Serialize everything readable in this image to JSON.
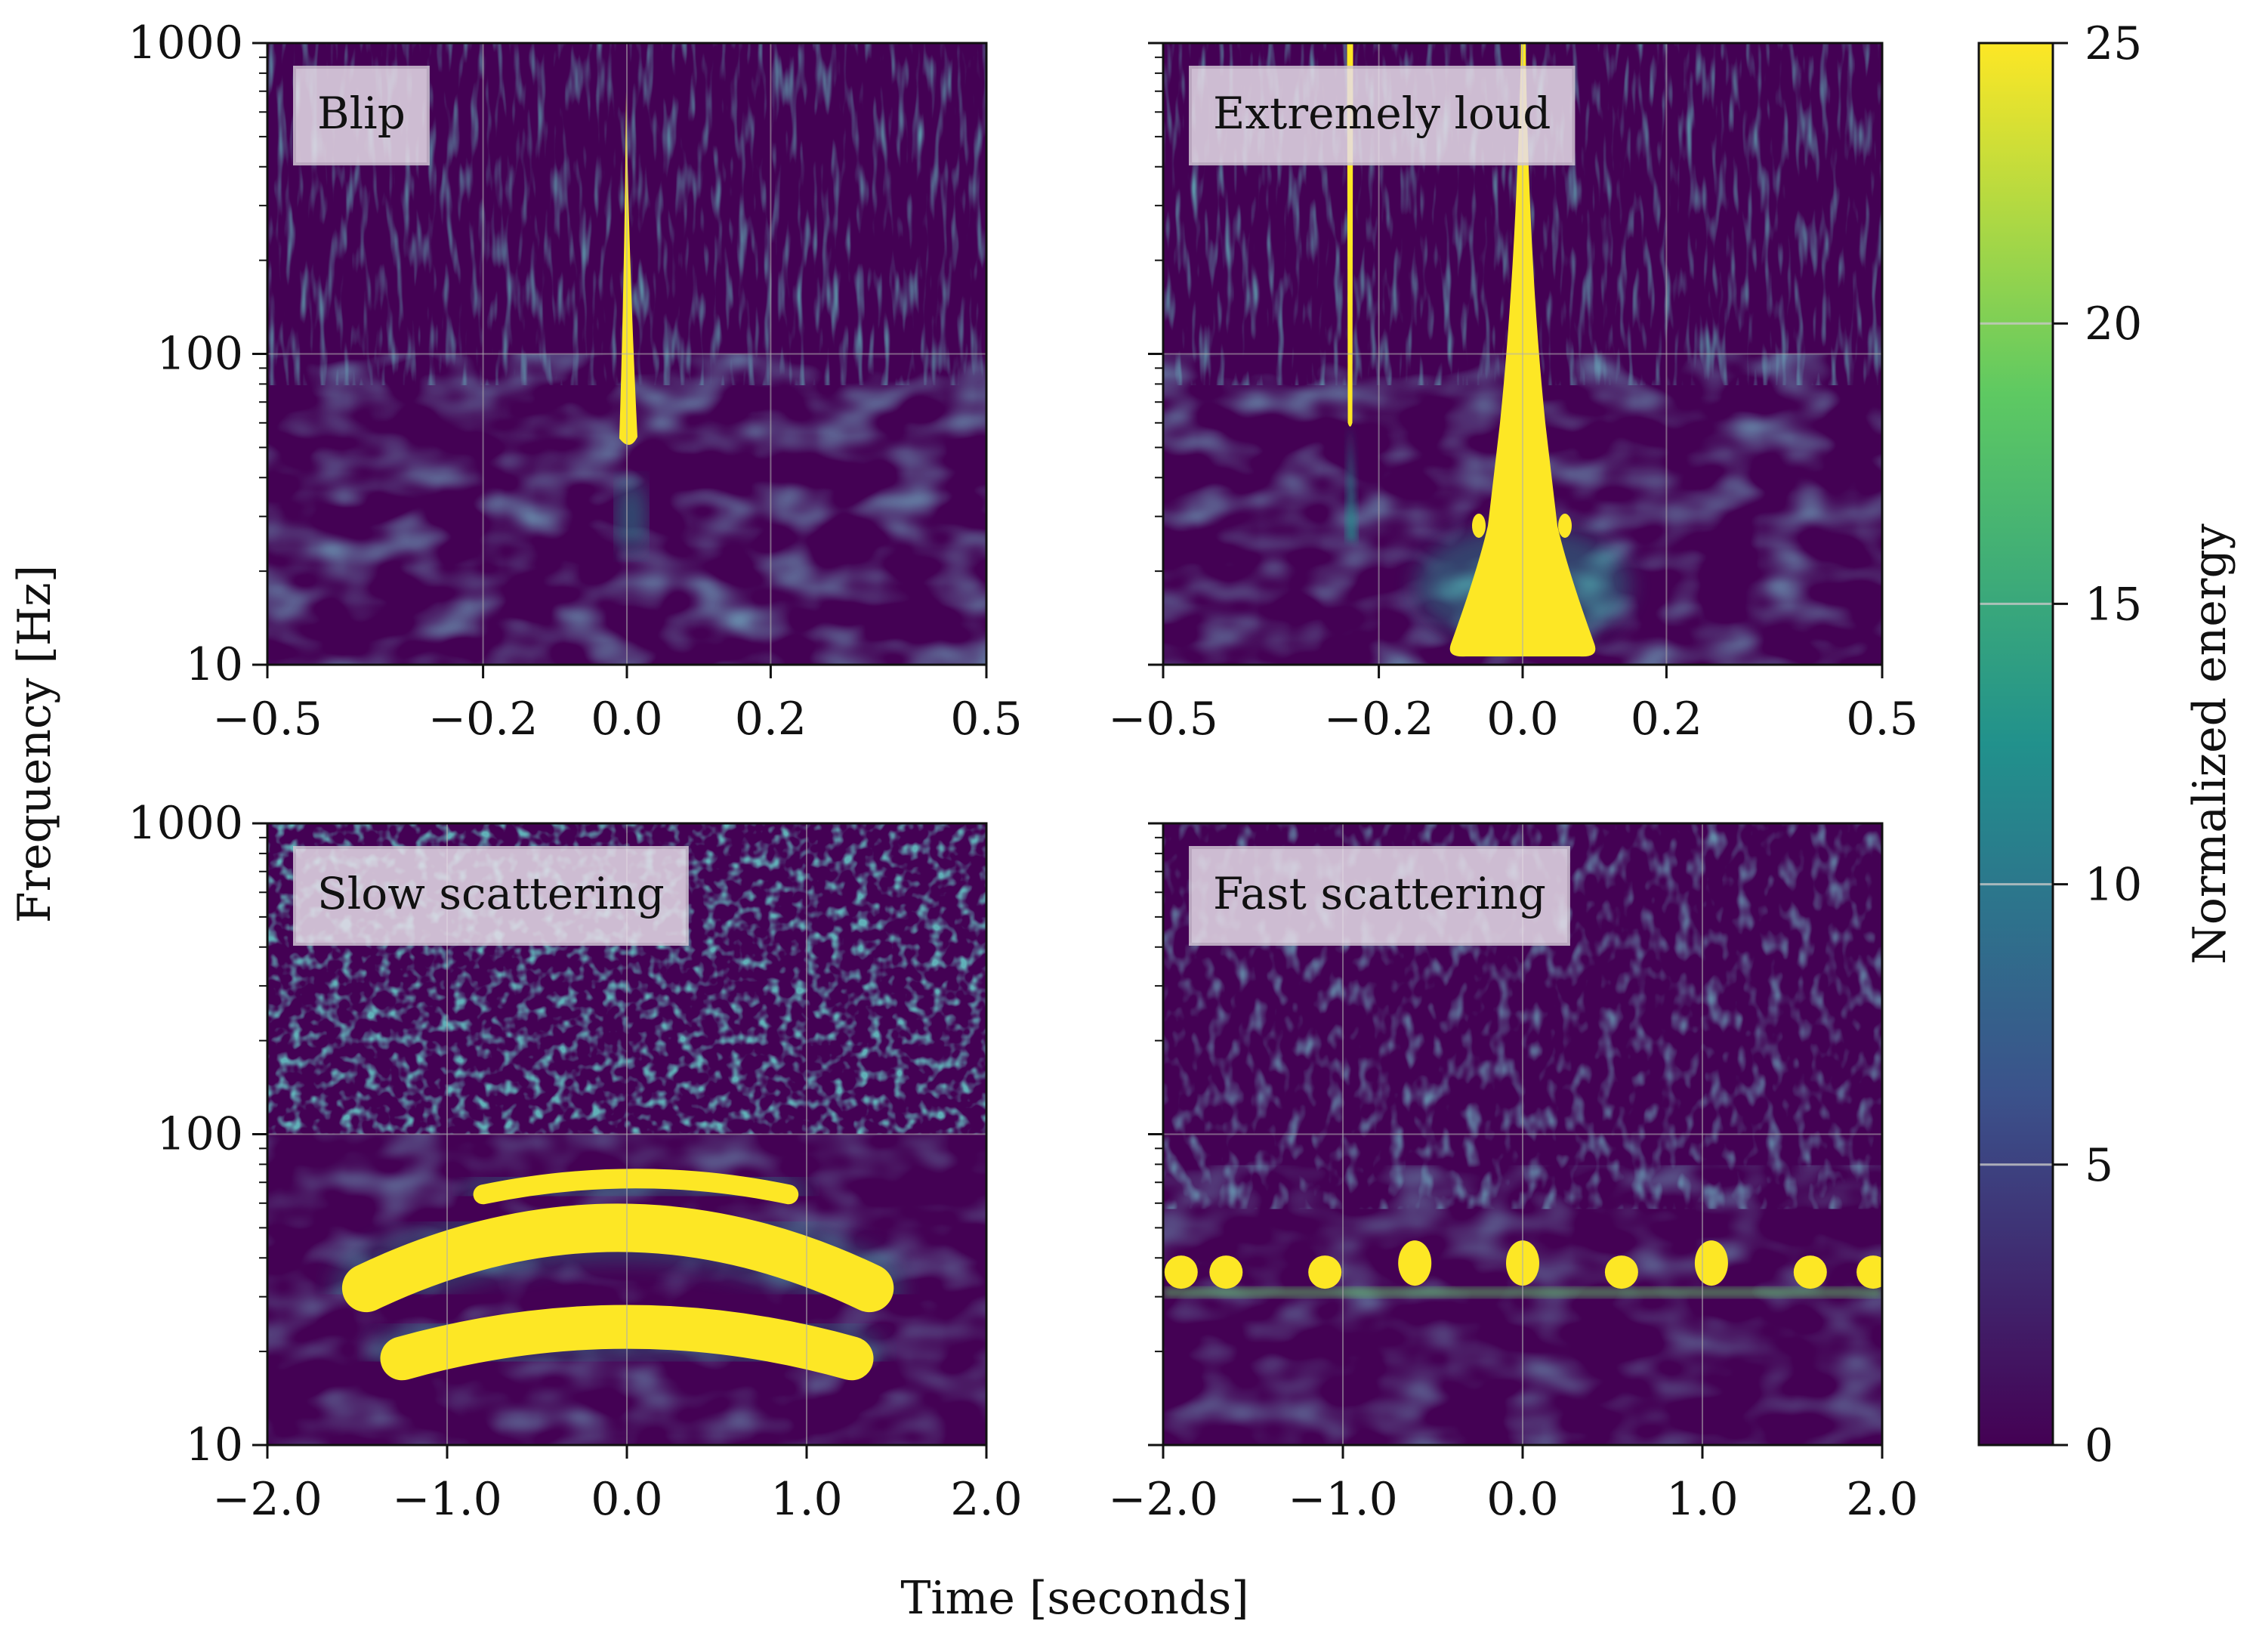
{
  "chart_data": {
    "type": "heatmap",
    "title": "",
    "xlabel": "Time [seconds]",
    "ylabel": "Frequency [Hz]",
    "yscale": "log",
    "ylim": [
      10,
      1000
    ],
    "grid": true,
    "colormap": {
      "name": "viridis",
      "label": "Normalized energy",
      "range": [
        0,
        25
      ],
      "ticks": [
        0,
        5,
        10,
        15,
        20,
        25
      ],
      "tick_labels": [
        "0",
        "5",
        "10",
        "15",
        "20",
        "25"
      ],
      "stops": [
        "#440154",
        "#3b528b",
        "#21918c",
        "#5ec962",
        "#fde725"
      ]
    },
    "panels": [
      {
        "label": "Blip",
        "xlim": [
          -0.5,
          0.5
        ],
        "xticks": [
          -0.5,
          -0.2,
          0.0,
          0.2,
          0.5
        ],
        "xtick_labels": [
          "−0.5",
          "−0.2",
          "0.0",
          "0.2",
          "0.5"
        ],
        "ytick_labels": [
          "10",
          "100",
          "1000"
        ],
        "features": [
          {
            "kind": "narrow vertical burst",
            "t": 0.0,
            "f_low": 50,
            "f_high": 700,
            "energy": 25
          }
        ]
      },
      {
        "label": "Extremely loud",
        "xlim": [
          -0.5,
          0.5
        ],
        "xticks": [
          -0.5,
          -0.2,
          0.0,
          0.2,
          0.5
        ],
        "xtick_labels": [
          "−0.5",
          "−0.2",
          "0.0",
          "0.2",
          "0.5"
        ],
        "ytick_labels": [
          "",
          "",
          ""
        ],
        "features": [
          {
            "kind": "wide triangular burst",
            "t": 0.0,
            "f_low": 11,
            "f_high": 1000,
            "t_halfwidth_at_f_low": 0.1,
            "energy": 25
          },
          {
            "kind": "narrow vertical line",
            "t": -0.24,
            "f_low": 60,
            "f_high": 1000,
            "energy": 25
          }
        ]
      },
      {
        "label": "Slow scattering",
        "xlim": [
          -2.0,
          2.0
        ],
        "xticks": [
          -2.0,
          -1.0,
          0.0,
          1.0,
          2.0
        ],
        "xtick_labels": [
          "−2.0",
          "−1.0",
          "0.0",
          "1.0",
          "2.0"
        ],
        "ytick_labels": [
          "10",
          "100",
          "1000"
        ],
        "features": [
          {
            "kind": "arch",
            "t_start": -0.8,
            "t_end": 0.9,
            "f_peak": 72,
            "f_edge": 64,
            "energy": 25
          },
          {
            "kind": "arch",
            "t_start": -1.45,
            "t_end": 1.35,
            "f_peak": 50,
            "f_edge": 32,
            "energy": 25
          },
          {
            "kind": "arch",
            "t_start": -1.25,
            "t_end": 1.25,
            "f_peak": 24,
            "f_edge": 19,
            "energy": 25
          }
        ]
      },
      {
        "label": "Fast scattering",
        "xlim": [
          -2.0,
          2.0
        ],
        "xticks": [
          -2.0,
          -1.0,
          0.0,
          1.0,
          2.0
        ],
        "xtick_labels": [
          "−2.0",
          "−1.0",
          "0.0",
          "1.0",
          "2.0"
        ],
        "ytick_labels": [
          "",
          "",
          ""
        ],
        "features": [
          {
            "kind": "blob row",
            "f_center": 36,
            "times": [
              -1.9,
              -1.65,
              -1.1,
              -0.6,
              0.0,
              0.55,
              1.05,
              1.6,
              1.95
            ],
            "energy": 25
          }
        ]
      }
    ]
  }
}
